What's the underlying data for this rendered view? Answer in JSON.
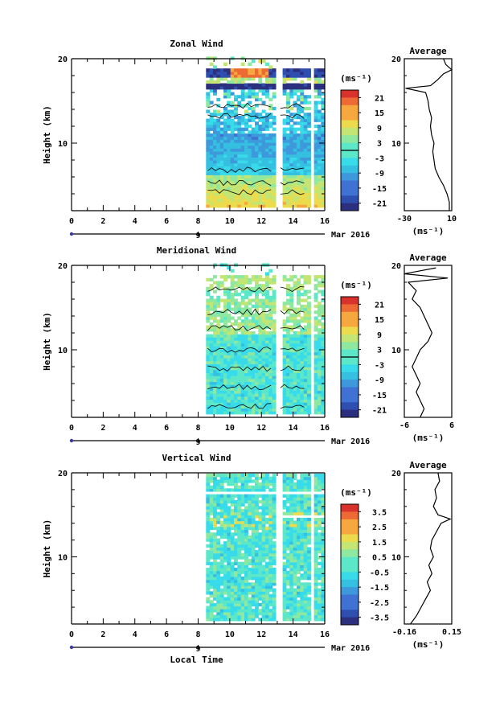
{
  "chart_data": [
    {
      "type": "heatmap",
      "title": "Zonal Wind",
      "ylabel": "Height (km)",
      "xlim": [
        0,
        16
      ],
      "ylim": [
        2,
        20
      ],
      "x_ticks": [
        "0",
        "2",
        "4",
        "6",
        "8",
        "10",
        "12",
        "14",
        "16"
      ],
      "y_ticks": [
        "10",
        "20"
      ],
      "date_label": "9",
      "month_label": "Mar 2016",
      "data_x_range": [
        8.5,
        15.8
      ],
      "colorbar": {
        "unit": "(ms⁻¹)",
        "min": -24,
        "max": 24,
        "ticks": [
          "21",
          "15",
          "9",
          "3",
          "-3",
          "-9",
          "-15",
          "-21"
        ],
        "contour_level": 0
      },
      "average": {
        "title": "Average",
        "xlim": [
          -30,
          10
        ],
        "x_ticks": [
          "-30",
          "10"
        ],
        "xlabel": "(ms⁻¹)",
        "y_ticks": [
          "10",
          "20"
        ],
        "profile": [
          [
            8,
            2
          ],
          [
            8,
            3
          ],
          [
            6,
            4
          ],
          [
            3,
            5
          ],
          [
            -1,
            6
          ],
          [
            -4,
            7
          ],
          [
            -5,
            8
          ],
          [
            -6,
            9
          ],
          [
            -5,
            10
          ],
          [
            -7,
            11
          ],
          [
            -8,
            12
          ],
          [
            -7,
            13
          ],
          [
            -9,
            14
          ],
          [
            -10,
            15
          ],
          [
            -12,
            16
          ],
          [
            -29,
            16.5
          ],
          [
            -8,
            16.8
          ],
          [
            -2,
            17.5
          ],
          [
            3,
            18.2
          ],
          [
            10,
            18.7
          ],
          [
            5,
            19.3
          ],
          [
            3,
            20
          ]
        ]
      }
    },
    {
      "type": "heatmap",
      "title": "Meridional Wind",
      "ylabel": "Height (km)",
      "xlim": [
        0,
        16
      ],
      "ylim": [
        2,
        20
      ],
      "x_ticks": [
        "0",
        "2",
        "4",
        "6",
        "8",
        "10",
        "12",
        "14",
        "16"
      ],
      "y_ticks": [
        "10",
        "20"
      ],
      "date_label": "9",
      "month_label": "Mar 2016",
      "data_x_range": [
        8.5,
        15.8
      ],
      "colorbar": {
        "unit": "(ms⁻¹)",
        "min": -24,
        "max": 24,
        "ticks": [
          "21",
          "15",
          "9",
          "3",
          "-3",
          "-9",
          "-15",
          "-21"
        ],
        "contour_level": 0
      },
      "average": {
        "title": "Average",
        "xlim": [
          -6,
          6
        ],
        "x_ticks": [
          "-6",
          "6"
        ],
        "xlabel": "(ms⁻¹)",
        "y_ticks": [
          "10",
          "20"
        ],
        "profile": [
          [
            -2,
            2
          ],
          [
            -1,
            3
          ],
          [
            -2,
            4
          ],
          [
            -3,
            5
          ],
          [
            -2,
            6
          ],
          [
            -3,
            7
          ],
          [
            -4,
            8
          ],
          [
            -3,
            9
          ],
          [
            -2,
            10
          ],
          [
            0,
            11
          ],
          [
            1,
            12
          ],
          [
            0,
            13
          ],
          [
            -1,
            14
          ],
          [
            -2,
            15
          ],
          [
            -4,
            16
          ],
          [
            -3,
            17
          ],
          [
            -5,
            18
          ],
          [
            5,
            18.5
          ],
          [
            -6,
            19
          ],
          [
            2,
            19.7
          ]
        ]
      }
    },
    {
      "type": "heatmap",
      "title": "Vertical Wind",
      "xlabel": "Local Time",
      "ylabel": "Height (km)",
      "xlim": [
        0,
        16
      ],
      "ylim": [
        2,
        20
      ],
      "x_ticks": [
        "0",
        "2",
        "4",
        "6",
        "8",
        "10",
        "12",
        "14",
        "16"
      ],
      "y_ticks": [
        "10",
        "20"
      ],
      "date_label": "9",
      "month_label": "Mar 2016",
      "data_x_range": [
        8.5,
        15.8
      ],
      "colorbar": {
        "unit": "(ms⁻¹)",
        "min": -4,
        "max": 4,
        "ticks": [
          "3.5",
          "2.5",
          "1.5",
          "0.5",
          "-0.5",
          "-1.5",
          "-2.5",
          "-3.5"
        ],
        "contour_level": null
      },
      "average": {
        "title": "Average",
        "xlim": [
          -0.16,
          0.15
        ],
        "x_ticks": [
          "-0.16",
          "0.15"
        ],
        "xlabel": "(ms⁻¹)",
        "y_ticks": [
          "10",
          "20"
        ],
        "profile": [
          [
            -0.12,
            2
          ],
          [
            -0.08,
            3
          ],
          [
            -0.05,
            4
          ],
          [
            -0.02,
            5
          ],
          [
            0.01,
            6
          ],
          [
            -0.01,
            7
          ],
          [
            0.02,
            8
          ],
          [
            0.0,
            9
          ],
          [
            0.03,
            10
          ],
          [
            0.01,
            11
          ],
          [
            0.02,
            12
          ],
          [
            0.05,
            13
          ],
          [
            0.08,
            14
          ],
          [
            0.14,
            14.5
          ],
          [
            0.06,
            15
          ],
          [
            0.03,
            16
          ],
          [
            0.05,
            17
          ],
          [
            0.04,
            18
          ],
          [
            0.07,
            19
          ],
          [
            0.06,
            20
          ]
        ]
      }
    }
  ]
}
